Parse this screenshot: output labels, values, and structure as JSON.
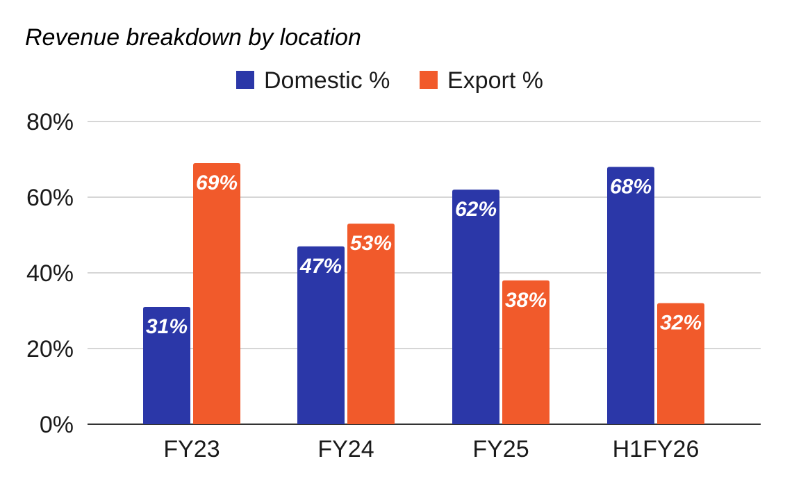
{
  "chart_data": {
    "type": "bar",
    "title": "Revenue breakdown by location",
    "xlabel": "",
    "ylabel": "",
    "categories": [
      "FY23",
      "FY24",
      "FY25",
      "H1FY26"
    ],
    "series": [
      {
        "name": "Domestic %",
        "color": "#2b37a8",
        "values": [
          31,
          47,
          62,
          68
        ],
        "labels": [
          "31%",
          "47%",
          "62%",
          "68%"
        ]
      },
      {
        "name": "Export %",
        "color": "#f15a2b",
        "values": [
          69,
          53,
          38,
          32
        ],
        "labels": [
          "69%",
          "53%",
          "38%",
          "32%"
        ]
      }
    ],
    "ylim": [
      0,
      80
    ],
    "yticks": [
      0,
      20,
      40,
      60,
      80
    ],
    "ytick_labels": [
      "0%",
      "20%",
      "40%",
      "60%",
      "80%"
    ],
    "grid": true,
    "legend_position": "top-center"
  }
}
